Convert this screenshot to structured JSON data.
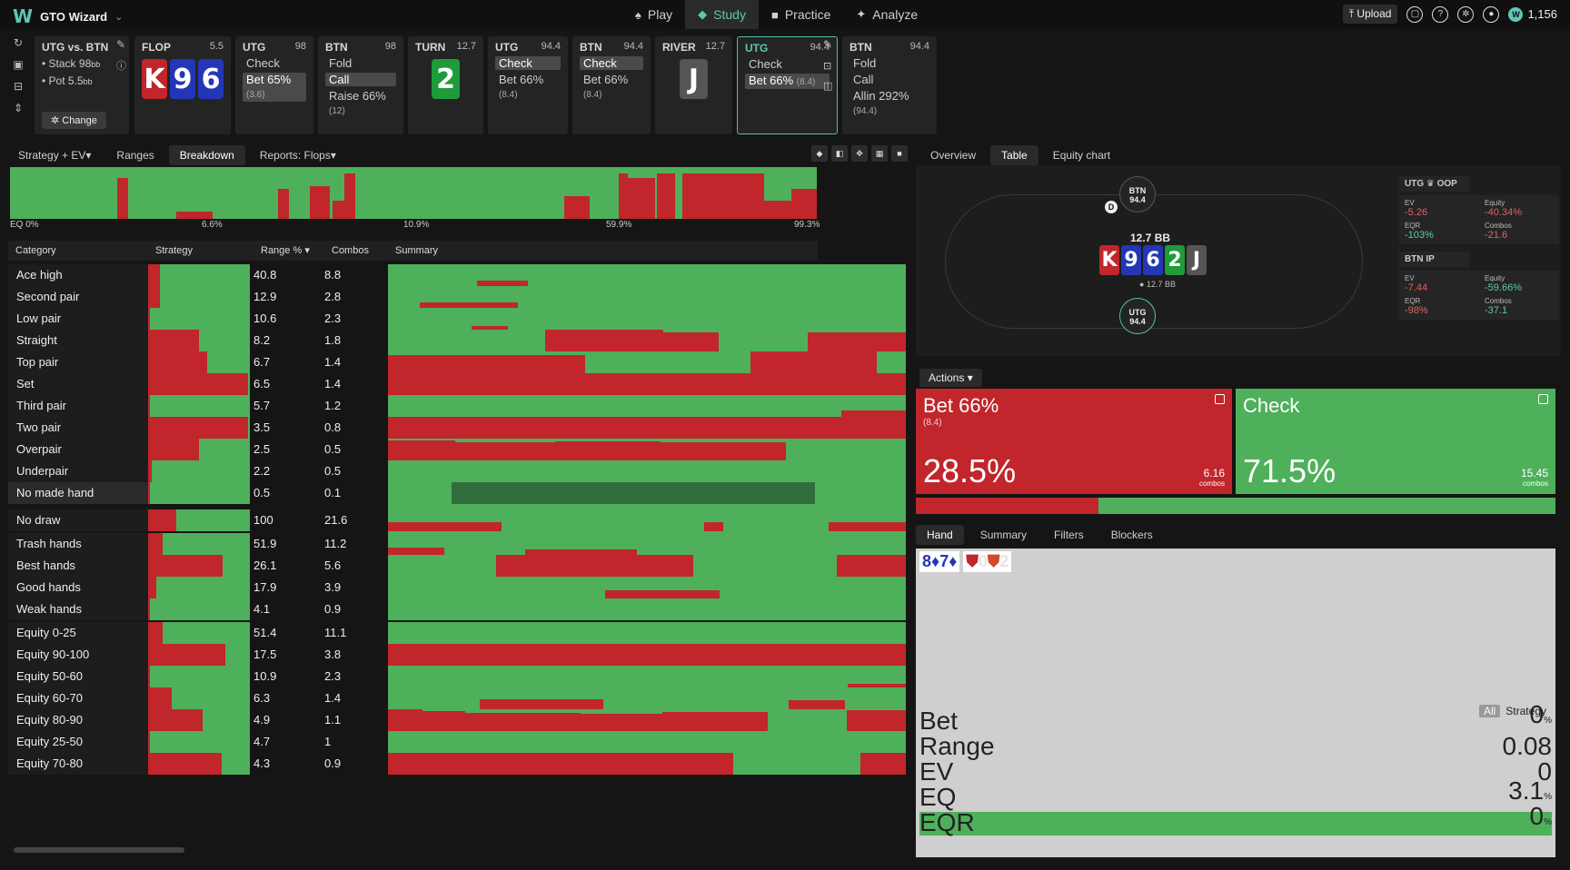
{
  "app": {
    "logo": "W",
    "title": "GTO Wizard"
  },
  "nav": [
    {
      "label": "Play",
      "icon": "♠"
    },
    {
      "label": "Study",
      "icon": "◆"
    },
    {
      "label": "Practice",
      "icon": "■"
    },
    {
      "label": "Analyze",
      "icon": "✦"
    }
  ],
  "top_right": {
    "upload": "Upload",
    "coins": "1,156"
  },
  "colors": {
    "bet": "#c0262b",
    "check": "#4fb05b",
    "accent": "#5ec8b0"
  },
  "spot": {
    "title": "UTG vs. BTN",
    "stack": "Stack 98",
    "stack_unit": "bb",
    "pot": "Pot 5.5",
    "pot_unit": "bb",
    "change": "Change"
  },
  "nodes": [
    {
      "name": "FLOP",
      "val": "5.5",
      "cards": [
        {
          "r": "K",
          "c": "red"
        },
        {
          "r": "9",
          "c": "blue"
        },
        {
          "r": "6",
          "c": "blue"
        }
      ]
    },
    {
      "name": "UTG",
      "val": "98",
      "actions": [
        {
          "t": "Check"
        },
        {
          "t": "Bet 65%",
          "s": "(3.6)",
          "sel": true
        }
      ]
    },
    {
      "name": "BTN",
      "val": "98",
      "actions": [
        {
          "t": "Fold"
        },
        {
          "t": "Call",
          "sel": true
        },
        {
          "t": "Raise 66%",
          "s": "(12)"
        }
      ]
    },
    {
      "name": "TURN",
      "val": "12.7",
      "cards": [
        {
          "r": "2",
          "c": "green"
        }
      ]
    },
    {
      "name": "UTG",
      "val": "94.4",
      "actions": [
        {
          "t": "Check",
          "sel": true
        },
        {
          "t": "Bet 66%",
          "s": "(8.4)"
        }
      ]
    },
    {
      "name": "BTN",
      "val": "94.4",
      "actions": [
        {
          "t": "Check",
          "sel": true
        },
        {
          "t": "Bet 66%",
          "s": "(8.4)"
        }
      ]
    },
    {
      "name": "RIVER",
      "val": "12.7",
      "cards": [
        {
          "r": "J",
          "c": "gray"
        }
      ]
    },
    {
      "name": "UTG",
      "val": "94.4",
      "active": true,
      "actions": [
        {
          "t": "Check"
        },
        {
          "t": "Bet 66%",
          "s": "(8.4)",
          "sel": true
        }
      ]
    },
    {
      "name": "BTN",
      "val": "94.4",
      "actions": [
        {
          "t": "Fold"
        },
        {
          "t": "Call"
        },
        {
          "t": "Allin 292%",
          "s": "(94.4)"
        }
      ]
    }
  ],
  "left_tabs": [
    "Strategy + EV",
    "Ranges",
    "Breakdown",
    "Reports: Flops"
  ],
  "strip_labels": [
    "EQ 0%",
    "6.6%",
    "10.9%",
    "59.9%",
    "99.3%"
  ],
  "table_headers": [
    "Category",
    "Strategy",
    "Range %",
    "Combos",
    "Summary"
  ],
  "rows": [
    {
      "cat": "Ace high",
      "bet": 0.12,
      "rng": "40.8",
      "cmb": "8.8"
    },
    {
      "cat": "Second pair",
      "bet": 0.12,
      "rng": "12.9",
      "cmb": "2.8"
    },
    {
      "cat": "Low pair",
      "bet": 0.02,
      "rng": "10.6",
      "cmb": "2.3"
    },
    {
      "cat": "Straight",
      "bet": 0.5,
      "rng": "8.2",
      "cmb": "1.8"
    },
    {
      "cat": "Top pair",
      "bet": 0.58,
      "rng": "6.7",
      "cmb": "1.4"
    },
    {
      "cat": "Set",
      "bet": 0.98,
      "rng": "6.5",
      "cmb": "1.4"
    },
    {
      "cat": "Third pair",
      "bet": 0.02,
      "rng": "5.7",
      "cmb": "1.2"
    },
    {
      "cat": "Two pair",
      "bet": 0.98,
      "rng": "3.5",
      "cmb": "0.8"
    },
    {
      "cat": "Overpair",
      "bet": 0.5,
      "rng": "2.5",
      "cmb": "0.5"
    },
    {
      "cat": "Underpair",
      "bet": 0.04,
      "rng": "2.2",
      "cmb": "0.5"
    },
    {
      "cat": "No made hand",
      "bet": 0.02,
      "rng": "0.5",
      "cmb": "0.1"
    },
    {
      "cat": "No draw",
      "bet": 0.28,
      "rng": "100",
      "cmb": "21.6"
    },
    {
      "cat": "Trash hands",
      "bet": 0.14,
      "rng": "51.9",
      "cmb": "11.2"
    },
    {
      "cat": "Best hands",
      "bet": 0.73,
      "rng": "26.1",
      "cmb": "5.6"
    },
    {
      "cat": "Good hands",
      "bet": 0.08,
      "rng": "17.9",
      "cmb": "3.9"
    },
    {
      "cat": "Weak hands",
      "bet": 0.02,
      "rng": "4.1",
      "cmb": "0.9"
    },
    {
      "cat": "Equity 0-25",
      "bet": 0.14,
      "rng": "51.4",
      "cmb": "11.1"
    },
    {
      "cat": "Equity 90-100",
      "bet": 0.76,
      "rng": "17.5",
      "cmb": "3.8"
    },
    {
      "cat": "Equity 50-60",
      "bet": 0.02,
      "rng": "10.9",
      "cmb": "2.3"
    },
    {
      "cat": "Equity 60-70",
      "bet": 0.23,
      "rng": "6.3",
      "cmb": "1.4"
    },
    {
      "cat": "Equity 80-90",
      "bet": 0.54,
      "rng": "4.9",
      "cmb": "1.1"
    },
    {
      "cat": "Equity 25-50",
      "bet": 0.02,
      "rng": "4.7",
      "cmb": "1"
    },
    {
      "cat": "Equity 70-80",
      "bet": 0.72,
      "rng": "4.3",
      "cmb": "0.9"
    }
  ],
  "right_tabs": [
    "Overview",
    "Table",
    "Equity chart"
  ],
  "table_view": {
    "seat_top": {
      "name": "BTN",
      "stack": "94.4"
    },
    "seat_bottom": {
      "name": "UTG",
      "stack": "94.4"
    },
    "dealer": "D",
    "pot": "12.7 BB",
    "pot_small": "12.7 BB",
    "board": [
      {
        "r": "K",
        "c": "red"
      },
      {
        "r": "9",
        "c": "blue"
      },
      {
        "r": "6",
        "c": "blue"
      },
      {
        "r": "2",
        "c": "green"
      },
      {
        "r": "J",
        "c": "gray"
      }
    ]
  },
  "players": [
    {
      "hdr": "UTG ♛ OOP",
      "stats": [
        {
          "l": "EV",
          "v": "-5.26",
          "neg": true
        },
        {
          "l": "Equity",
          "v": "-40.34%",
          "neg": true
        },
        {
          "l": "EQR",
          "v": "-103%",
          "neg": false
        },
        {
          "l": "Combos",
          "v": "-21.6",
          "neg": true
        }
      ]
    },
    {
      "hdr": "BTN IP",
      "stats": [
        {
          "l": "EV",
          "v": "-7.44",
          "neg": true
        },
        {
          "l": "Equity",
          "v": "-59.66%",
          "neg": false
        },
        {
          "l": "EQR",
          "v": "-98%",
          "neg": true
        },
        {
          "l": "Combos",
          "v": "-37.1",
          "neg": false
        }
      ]
    }
  ],
  "actions_label": "Actions",
  "bet_box": {
    "name": "Bet 66%",
    "size": "(8.4)",
    "pct": "28.5%",
    "combos": "6.16",
    "combos_lbl": "combos"
  },
  "check_box": {
    "name": "Check",
    "pct": "71.5%",
    "combos": "15.45",
    "combos_lbl": "combos"
  },
  "freq": {
    "bet": 0.285
  },
  "bottom_tabs": [
    "Hand",
    "Summary",
    "Filters",
    "Blockers"
  ],
  "hand": {
    "c1": "8♦",
    "c2": "7♦",
    "b1": "0",
    "b2": "2",
    "toggle_all": "All",
    "toggle_strategy": "Strategy",
    "stats": [
      {
        "l": "Bet",
        "v": "0",
        "u": "%"
      },
      {
        "l": "Range",
        "v": "0.08",
        "u": ""
      },
      {
        "l": "EV",
        "v": "0",
        "u": ""
      },
      {
        "l": "EQ",
        "v": "3.1",
        "u": "%"
      },
      {
        "l": "EQR",
        "v": "0",
        "u": "%"
      }
    ]
  }
}
